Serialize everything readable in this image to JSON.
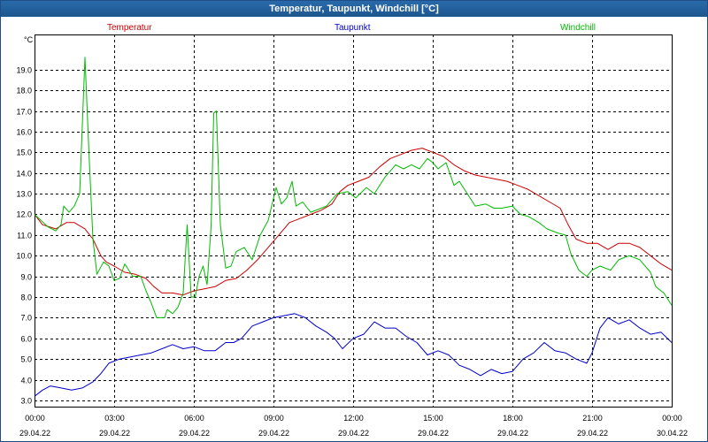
{
  "window": {
    "title": "Temperatur, Taupunkt, Windchill [°C]"
  },
  "chart_data": {
    "type": "line",
    "title": "Temperatur, Taupunkt, Windchill [°C]",
    "ylabel": "°C",
    "ylim": [
      2.7,
      20.7
    ],
    "xlim": [
      0,
      24
    ],
    "grid": true,
    "y_ticks": [
      "3.0",
      "4.0",
      "5.0",
      "6.0",
      "7.0",
      "8.0",
      "9.0",
      "10.0",
      "11.0",
      "12.0",
      "13.0",
      "14.0",
      "15.0",
      "16.0",
      "17.0",
      "18.0",
      "19.0"
    ],
    "x_ticks": [
      {
        "h": 0,
        "time": "00:00",
        "date": "29.04.22"
      },
      {
        "h": 3,
        "time": "03:00",
        "date": "29.04.22"
      },
      {
        "h": 6,
        "time": "06:00",
        "date": "29.04.22"
      },
      {
        "h": 9,
        "time": "09:00",
        "date": "29.04.22"
      },
      {
        "h": 12,
        "time": "12:00",
        "date": "29.04.22"
      },
      {
        "h": 15,
        "time": "15:00",
        "date": "29.04.22"
      },
      {
        "h": 18,
        "time": "18:00",
        "date": "29.04.22"
      },
      {
        "h": 21,
        "time": "21:00",
        "date": "29.04.22"
      },
      {
        "h": 24,
        "time": "00:00",
        "date": "30.04.22"
      }
    ],
    "series": [
      {
        "name": "Temperatur",
        "color": "#cc0000",
        "points": [
          [
            0,
            12.0
          ],
          [
            0.3,
            11.5
          ],
          [
            0.8,
            11.3
          ],
          [
            1.2,
            11.6
          ],
          [
            1.5,
            11.6
          ],
          [
            1.9,
            11.3
          ],
          [
            2.2,
            10.8
          ],
          [
            2.5,
            10.0
          ],
          [
            2.7,
            9.7
          ],
          [
            3.0,
            9.5
          ],
          [
            3.4,
            9.2
          ],
          [
            3.8,
            9.1
          ],
          [
            4.2,
            8.9
          ],
          [
            4.5,
            8.5
          ],
          [
            4.8,
            8.2
          ],
          [
            5.2,
            8.2
          ],
          [
            5.6,
            8.1
          ],
          [
            6.0,
            8.3
          ],
          [
            6.4,
            8.4
          ],
          [
            6.8,
            8.5
          ],
          [
            7.2,
            8.8
          ],
          [
            7.6,
            8.9
          ],
          [
            8.0,
            9.3
          ],
          [
            8.4,
            9.8
          ],
          [
            8.8,
            10.4
          ],
          [
            9.2,
            11.0
          ],
          [
            9.6,
            11.6
          ],
          [
            10.0,
            11.8
          ],
          [
            10.4,
            12.0
          ],
          [
            10.8,
            12.2
          ],
          [
            11.2,
            12.5
          ],
          [
            11.5,
            13.1
          ],
          [
            11.8,
            13.4
          ],
          [
            12.2,
            13.6
          ],
          [
            12.6,
            13.8
          ],
          [
            13.0,
            14.3
          ],
          [
            13.4,
            14.7
          ],
          [
            13.8,
            14.9
          ],
          [
            14.2,
            15.1
          ],
          [
            14.6,
            15.2
          ],
          [
            15.0,
            15.0
          ],
          [
            15.4,
            14.8
          ],
          [
            15.8,
            14.4
          ],
          [
            16.2,
            14.1
          ],
          [
            16.6,
            13.9
          ],
          [
            17.0,
            13.8
          ],
          [
            17.4,
            13.7
          ],
          [
            17.8,
            13.6
          ],
          [
            18.2,
            13.4
          ],
          [
            18.6,
            13.2
          ],
          [
            19.0,
            12.9
          ],
          [
            19.4,
            12.6
          ],
          [
            19.8,
            12.3
          ],
          [
            20.1,
            11.5
          ],
          [
            20.4,
            10.8
          ],
          [
            20.8,
            10.6
          ],
          [
            21.2,
            10.6
          ],
          [
            21.6,
            10.3
          ],
          [
            22.0,
            10.6
          ],
          [
            22.4,
            10.6
          ],
          [
            22.8,
            10.4
          ],
          [
            23.2,
            10.0
          ],
          [
            23.6,
            9.6
          ],
          [
            24.0,
            9.3
          ]
        ]
      },
      {
        "name": "Taupunkt",
        "color": "#0000cc",
        "points": [
          [
            0,
            3.2
          ],
          [
            0.3,
            3.5
          ],
          [
            0.6,
            3.7
          ],
          [
            1.0,
            3.6
          ],
          [
            1.4,
            3.5
          ],
          [
            1.8,
            3.6
          ],
          [
            2.2,
            3.9
          ],
          [
            2.5,
            4.3
          ],
          [
            2.8,
            4.8
          ],
          [
            3.2,
            5.0
          ],
          [
            3.6,
            5.1
          ],
          [
            4.0,
            5.2
          ],
          [
            4.4,
            5.3
          ],
          [
            4.8,
            5.5
          ],
          [
            5.2,
            5.7
          ],
          [
            5.6,
            5.5
          ],
          [
            6.0,
            5.6
          ],
          [
            6.4,
            5.4
          ],
          [
            6.8,
            5.4
          ],
          [
            7.2,
            5.8
          ],
          [
            7.5,
            5.8
          ],
          [
            7.8,
            6.0
          ],
          [
            8.2,
            6.6
          ],
          [
            8.6,
            6.8
          ],
          [
            9.0,
            7.0
          ],
          [
            9.4,
            7.1
          ],
          [
            9.8,
            7.2
          ],
          [
            10.2,
            7.0
          ],
          [
            10.6,
            6.6
          ],
          [
            11.0,
            6.3
          ],
          [
            11.3,
            6.0
          ],
          [
            11.6,
            5.5
          ],
          [
            12.0,
            6.0
          ],
          [
            12.4,
            6.2
          ],
          [
            12.8,
            6.8
          ],
          [
            13.2,
            6.5
          ],
          [
            13.6,
            6.5
          ],
          [
            14.0,
            6.1
          ],
          [
            14.4,
            5.8
          ],
          [
            14.8,
            5.2
          ],
          [
            15.2,
            5.4
          ],
          [
            15.6,
            5.2
          ],
          [
            16.0,
            4.7
          ],
          [
            16.4,
            4.5
          ],
          [
            16.8,
            4.2
          ],
          [
            17.2,
            4.5
          ],
          [
            17.6,
            4.3
          ],
          [
            18.0,
            4.4
          ],
          [
            18.4,
            5.0
          ],
          [
            18.8,
            5.3
          ],
          [
            19.2,
            5.8
          ],
          [
            19.6,
            5.4
          ],
          [
            20.0,
            5.3
          ],
          [
            20.4,
            5.0
          ],
          [
            20.8,
            4.8
          ],
          [
            21.0,
            5.3
          ],
          [
            21.3,
            6.5
          ],
          [
            21.6,
            7.0
          ],
          [
            22.0,
            6.7
          ],
          [
            22.4,
            6.9
          ],
          [
            22.8,
            6.5
          ],
          [
            23.2,
            6.2
          ],
          [
            23.6,
            6.3
          ],
          [
            24.0,
            5.8
          ]
        ]
      },
      {
        "name": "Windchill",
        "color": "#00bb00",
        "points": [
          [
            0,
            12.0
          ],
          [
            0.5,
            11.4
          ],
          [
            0.8,
            11.2
          ],
          [
            1.0,
            11.5
          ],
          [
            1.1,
            12.4
          ],
          [
            1.3,
            12.1
          ],
          [
            1.5,
            12.4
          ],
          [
            1.7,
            13.0
          ],
          [
            1.9,
            19.6
          ],
          [
            2.05,
            15.0
          ],
          [
            2.2,
            10.8
          ],
          [
            2.35,
            9.1
          ],
          [
            2.6,
            9.7
          ],
          [
            2.8,
            9.5
          ],
          [
            3.0,
            8.8
          ],
          [
            3.2,
            8.9
          ],
          [
            3.4,
            9.6
          ],
          [
            3.7,
            9.0
          ],
          [
            4.0,
            9.0
          ],
          [
            4.2,
            8.3
          ],
          [
            4.4,
            7.7
          ],
          [
            4.6,
            7.0
          ],
          [
            4.9,
            7.0
          ],
          [
            5.0,
            7.4
          ],
          [
            5.2,
            7.2
          ],
          [
            5.4,
            7.5
          ],
          [
            5.6,
            8.2
          ],
          [
            5.75,
            11.5
          ],
          [
            5.9,
            8.0
          ],
          [
            6.05,
            8.0
          ],
          [
            6.2,
            9.0
          ],
          [
            6.35,
            9.5
          ],
          [
            6.5,
            8.6
          ],
          [
            6.65,
            11.4
          ],
          [
            6.75,
            16.9
          ],
          [
            6.85,
            17.0
          ],
          [
            7.0,
            11.5
          ],
          [
            7.2,
            9.4
          ],
          [
            7.4,
            9.5
          ],
          [
            7.6,
            10.2
          ],
          [
            7.9,
            10.4
          ],
          [
            8.2,
            9.8
          ],
          [
            8.5,
            11.0
          ],
          [
            8.8,
            11.7
          ],
          [
            9.1,
            13.3
          ],
          [
            9.3,
            12.5
          ],
          [
            9.5,
            12.8
          ],
          [
            9.7,
            13.6
          ],
          [
            9.85,
            12.4
          ],
          [
            10.1,
            12.6
          ],
          [
            10.4,
            12.1
          ],
          [
            10.8,
            12.3
          ],
          [
            11.0,
            12.4
          ],
          [
            11.4,
            13.0
          ],
          [
            11.8,
            13.1
          ],
          [
            12.1,
            12.8
          ],
          [
            12.5,
            13.3
          ],
          [
            12.8,
            13.0
          ],
          [
            13.2,
            13.8
          ],
          [
            13.6,
            14.4
          ],
          [
            13.9,
            14.2
          ],
          [
            14.2,
            14.4
          ],
          [
            14.5,
            14.2
          ],
          [
            14.8,
            14.7
          ],
          [
            15.0,
            14.5
          ],
          [
            15.2,
            14.2
          ],
          [
            15.5,
            14.5
          ],
          [
            15.8,
            13.4
          ],
          [
            16.0,
            13.6
          ],
          [
            16.3,
            13.0
          ],
          [
            16.6,
            12.4
          ],
          [
            17.0,
            12.5
          ],
          [
            17.3,
            12.3
          ],
          [
            17.6,
            12.3
          ],
          [
            18.0,
            12.4
          ],
          [
            18.3,
            12.0
          ],
          [
            18.6,
            11.9
          ],
          [
            19.0,
            11.6
          ],
          [
            19.3,
            11.3
          ],
          [
            19.7,
            11.1
          ],
          [
            20.0,
            11.0
          ],
          [
            20.2,
            10.1
          ],
          [
            20.5,
            9.3
          ],
          [
            20.8,
            9.0
          ],
          [
            21.0,
            9.3
          ],
          [
            21.3,
            9.5
          ],
          [
            21.7,
            9.3
          ],
          [
            22.0,
            9.8
          ],
          [
            22.4,
            10.0
          ],
          [
            22.8,
            9.8
          ],
          [
            23.2,
            9.2
          ],
          [
            23.4,
            8.5
          ],
          [
            23.7,
            8.2
          ],
          [
            24.0,
            7.6
          ]
        ]
      }
    ]
  }
}
